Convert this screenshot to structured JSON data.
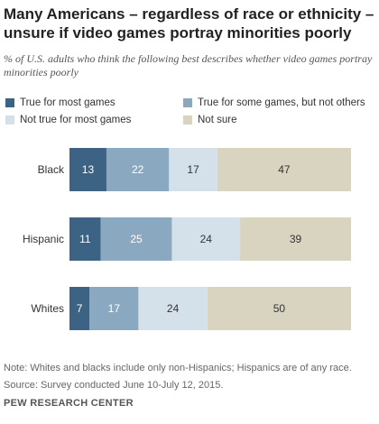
{
  "title": "Many Americans – regardless of race or ethnicity – unsure if video games portray minorities poorly",
  "subtitle": "% of U.S. adults who think the following best describes whether video games portray minorities poorly",
  "chart_data": {
    "type": "bar",
    "orientation": "horizontal",
    "stacked": true,
    "categories": [
      "Black",
      "Hispanic",
      "Whites"
    ],
    "series": [
      {
        "name": "True for most games",
        "color": "#3d6384",
        "values": [
          13,
          11,
          7
        ]
      },
      {
        "name": "True for some games, but not others",
        "color": "#8aa8c0",
        "values": [
          22,
          25,
          17
        ]
      },
      {
        "name": "Not true for most games",
        "color": "#d4e1ea",
        "values": [
          17,
          24,
          24
        ]
      },
      {
        "name": "Not sure",
        "color": "#d8d4c0",
        "values": [
          47,
          39,
          50
        ]
      }
    ],
    "legend_position": "top",
    "grid": false
  },
  "footer": {
    "note": "Note: Whites and blacks include only non-Hispanics; Hispanics are of any race.",
    "source": "Source: Survey conducted June 10-July 12, 2015.",
    "brand": "PEW RESEARCH CENTER"
  }
}
